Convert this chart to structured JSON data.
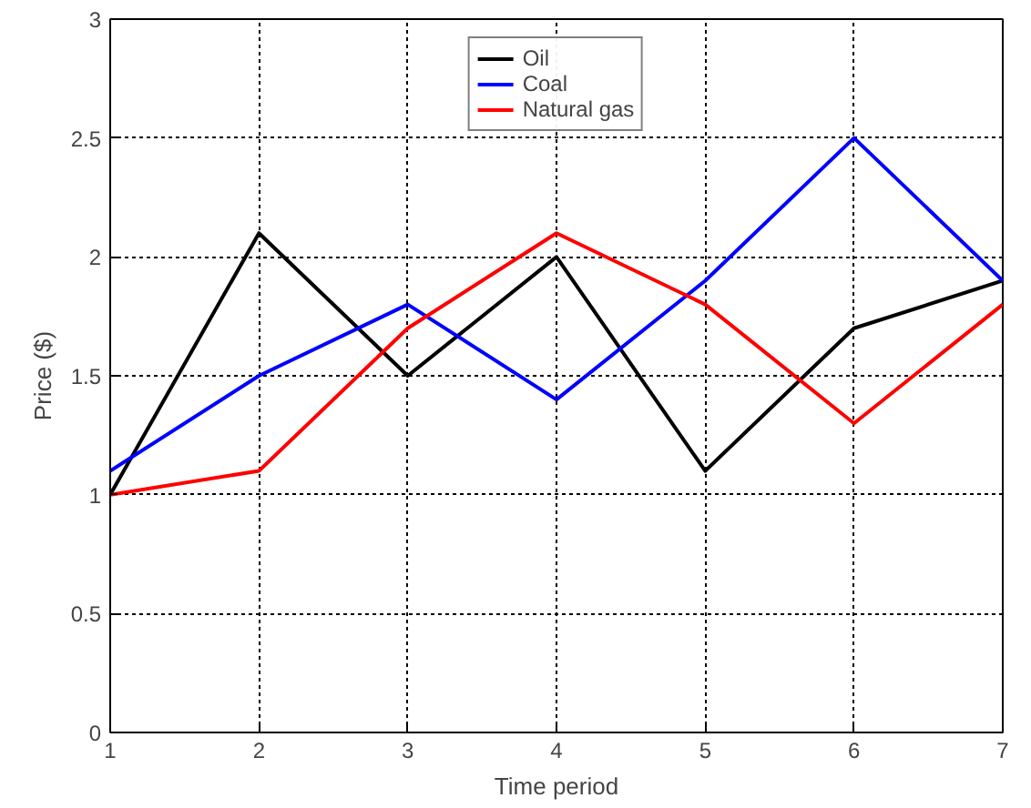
{
  "chart_data": {
    "type": "line",
    "xlabel": "Time period",
    "ylabel": "Price ($)",
    "x": [
      1,
      2,
      3,
      4,
      5,
      6,
      7
    ],
    "series": [
      {
        "name": "Oil",
        "color": "#000000",
        "values": [
          1.0,
          2.1,
          1.5,
          2.0,
          1.1,
          1.7,
          1.9
        ]
      },
      {
        "name": "Coal",
        "color": "#0000ff",
        "values": [
          1.1,
          1.5,
          1.8,
          1.4,
          1.9,
          2.5,
          1.9
        ]
      },
      {
        "name": "Natural gas",
        "color": "#ff0000",
        "values": [
          1.0,
          1.1,
          1.7,
          2.1,
          1.8,
          1.3,
          1.8
        ]
      }
    ],
    "xlim": [
      1,
      7
    ],
    "ylim": [
      0,
      3
    ],
    "xticks": [
      1,
      2,
      3,
      4,
      5,
      6,
      7
    ],
    "yticks": [
      0,
      0.5,
      1,
      1.5,
      2,
      2.5,
      3
    ],
    "grid": true,
    "legend": "top",
    "line_style": "solid",
    "marker": "none"
  }
}
